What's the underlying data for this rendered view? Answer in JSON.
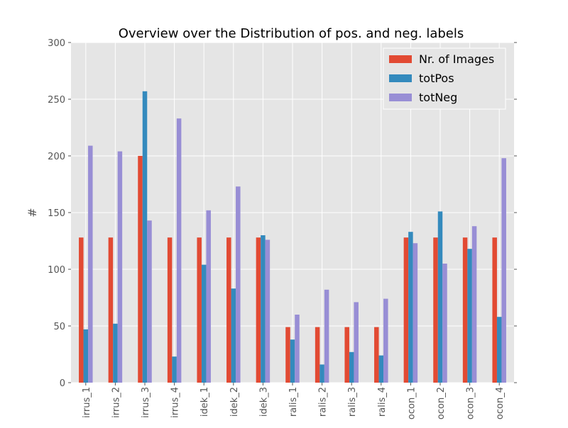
{
  "chart_data": {
    "type": "bar",
    "title": "Overview over the Distribution of pos. and neg. labels",
    "xlabel": "",
    "ylabel": "#",
    "ylim": [
      0,
      300
    ],
    "yticks": [
      0,
      50,
      100,
      150,
      200,
      250,
      300
    ],
    "grid": true,
    "legend_position": "top-right",
    "categories": [
      "irrus_1",
      "irrus_2",
      "irrus_3",
      "irrus_4",
      "idek_1",
      "idek_2",
      "idek_3",
      "ralis_1",
      "ralis_2",
      "ralis_3",
      "ralis_4",
      "ocon_1",
      "ocon_2",
      "ocon_3",
      "ocon_4"
    ],
    "series": [
      {
        "name": "Nr. of Images",
        "color": "#E24A33",
        "values": [
          128,
          128,
          200,
          128,
          128,
          128,
          128,
          49,
          49,
          49,
          49,
          128,
          128,
          128,
          128
        ]
      },
      {
        "name": "totPos",
        "color": "#348ABD",
        "values": [
          47,
          52,
          257,
          23,
          104,
          83,
          130,
          38,
          16,
          27,
          24,
          133,
          151,
          118,
          58
        ]
      },
      {
        "name": "totNeg",
        "color": "#988ED5",
        "values": [
          209,
          204,
          143,
          233,
          152,
          173,
          126,
          60,
          82,
          71,
          74,
          123,
          105,
          138,
          198
        ]
      }
    ]
  }
}
